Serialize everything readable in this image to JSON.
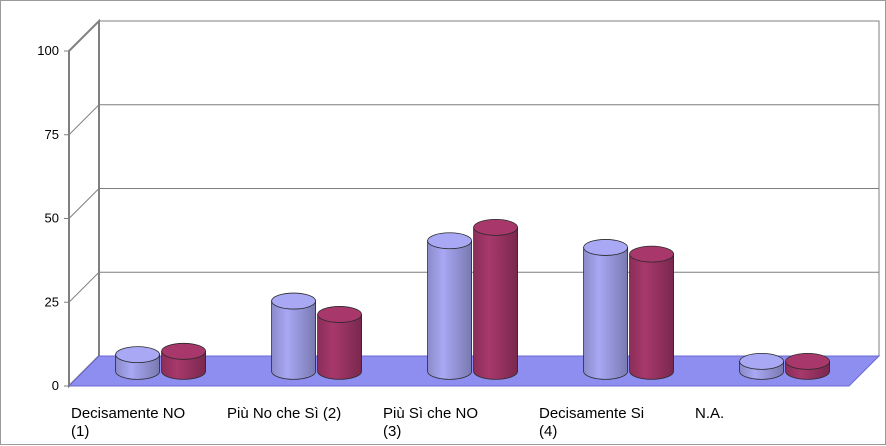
{
  "chart_data": {
    "type": "bar",
    "title": "",
    "xlabel": "",
    "ylabel": "",
    "ylim": [
      0,
      100
    ],
    "y_ticks": [
      "0",
      "25",
      "50",
      "75",
      "100"
    ],
    "grid": true,
    "legend": "none",
    "categories": [
      [
        "Decisamente NO",
        "(1)"
      ],
      [
        "Più No che Sì (2)"
      ],
      [
        "Più Sì che NO",
        "(3)"
      ],
      [
        "Decisamente Si",
        "(4)"
      ],
      [
        "N.A."
      ]
    ],
    "series": [
      {
        "values": [
          5,
          21,
          39,
          37,
          3
        ],
        "color": "#a8a8f5"
      },
      {
        "values": [
          6,
          17,
          43,
          35,
          3
        ],
        "color": "#a8386c"
      }
    ],
    "floor_color": "#8e8ef0"
  }
}
